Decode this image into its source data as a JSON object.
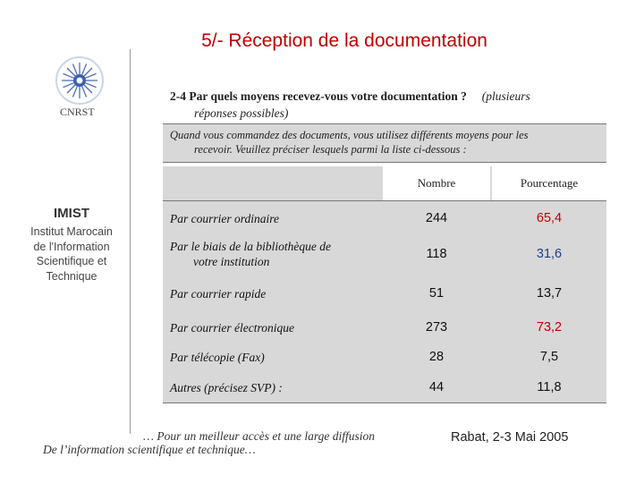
{
  "title": "5/- Réception de la documentation",
  "logo": {
    "text": "CNRST"
  },
  "institute": {
    "name": "IMIST",
    "line1": "Institut Marocain",
    "line2": "de l'Information",
    "line3": "Scientifique et",
    "line4": "Technique"
  },
  "question": {
    "main": "2-4  Par quels moyens recevez-vous votre documentation ?",
    "note1": "(plusieurs",
    "note2": "réponses possibles)"
  },
  "instruction": {
    "line1": "Quand vous commandez des documents, vous utilisez différents moyens pour les",
    "line2": "recevoir. Veuillez préciser lesquels  parmi la liste ci-dessous :"
  },
  "table": {
    "headers": [
      "Nombre",
      "Pourcentage"
    ],
    "rows": [
      {
        "label1": "Par courrier ordinaire",
        "label2": "",
        "count": "244",
        "percent": "65,4",
        "percent_color": "#c00000"
      },
      {
        "label1": "Par le biais de la bibliothèque de",
        "label2": "votre institution",
        "count": "118",
        "percent": "31,6",
        "percent_color": "#1f3f8f"
      },
      {
        "label1": "Par courrier rapide",
        "label2": "",
        "count": "51",
        "percent": "13,7",
        "percent_color": "#111111"
      },
      {
        "label1": "Par courrier électronique",
        "label2": "",
        "count": "273",
        "percent": "73,2",
        "percent_color": "#c00000"
      },
      {
        "label1": "Par télécopie (Fax)",
        "label2": "",
        "count": "28",
        "percent": "7,5",
        "percent_color": "#111111"
      },
      {
        "label1": "Autres (précisez SVP) :",
        "label2": "",
        "count": "44",
        "percent": "11,8",
        "percent_color": "#111111"
      }
    ]
  },
  "footer": {
    "line1": "… Pour un meilleur accès et une large diffusion",
    "line2": "De l’information scientifique et technique…",
    "date": "Rabat, 2-3 Mai 2005"
  },
  "colors": {
    "title": "#c00000",
    "table_bg": "#d8d8d8"
  }
}
